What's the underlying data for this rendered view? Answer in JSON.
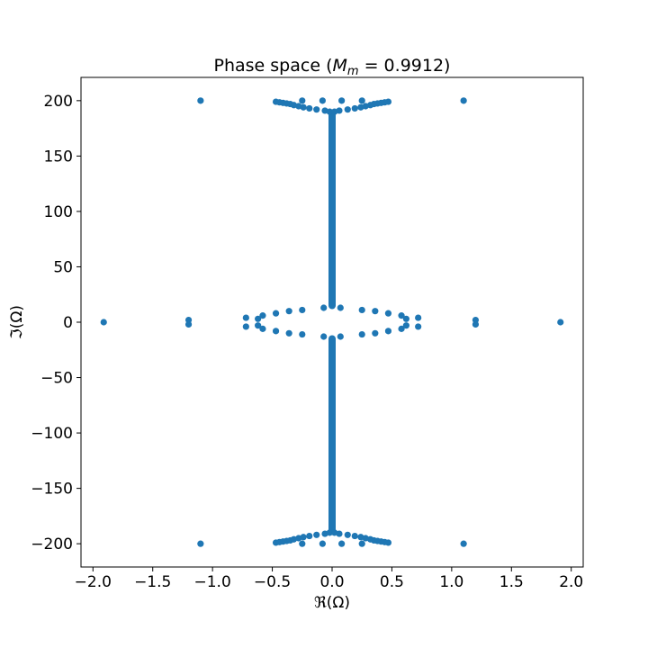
{
  "chart_data": {
    "type": "scatter",
    "title": "Phase space (M",
    "title_subscript": "m",
    "title_value": " = 0.9912)",
    "xlabel": "ℜ(Ω)",
    "ylabel": "ℑ(Ω)",
    "xlim": [
      -2.1,
      2.1
    ],
    "ylim": [
      -221,
      221
    ],
    "xticks": [
      -2.0,
      -1.5,
      -1.0,
      -0.5,
      0.0,
      0.5,
      1.0,
      1.5,
      2.0
    ],
    "xtick_labels": [
      "−2.0",
      "−1.5",
      "−1.0",
      "−0.5",
      "0.0",
      "0.5",
      "1.0",
      "1.5",
      "2.0"
    ],
    "yticks": [
      200,
      150,
      100,
      50,
      0,
      -50,
      -100,
      -150,
      -200
    ],
    "ytick_labels": [
      "200",
      "150",
      "100",
      "50",
      "0",
      "−50",
      "−100",
      "−150",
      "−200"
    ],
    "grid": false,
    "marker_color": "#1f77b4",
    "series": [
      {
        "points": [
          [
            -1.91,
            0
          ],
          [
            1.91,
            0
          ],
          [
            -1.2,
            2
          ],
          [
            -1.2,
            -2
          ],
          [
            1.2,
            2
          ],
          [
            1.2,
            -2
          ],
          [
            -1.1,
            200
          ],
          [
            1.1,
            200
          ],
          [
            -1.1,
            -200
          ],
          [
            1.1,
            -200
          ],
          [
            -0.72,
            4
          ],
          [
            -0.72,
            -4
          ],
          [
            0.72,
            4
          ],
          [
            0.72,
            -4
          ],
          [
            -0.62,
            3
          ],
          [
            -0.62,
            -3
          ],
          [
            0.62,
            3
          ],
          [
            0.62,
            -3
          ],
          [
            -0.58,
            6
          ],
          [
            -0.58,
            -6
          ],
          [
            0.58,
            6
          ],
          [
            0.58,
            -6
          ],
          [
            -0.47,
            8
          ],
          [
            -0.47,
            -8
          ],
          [
            0.47,
            8
          ],
          [
            0.47,
            -8
          ],
          [
            -0.36,
            10
          ],
          [
            -0.36,
            -10
          ],
          [
            0.36,
            10
          ],
          [
            0.36,
            -10
          ],
          [
            -0.25,
            11
          ],
          [
            -0.25,
            -11
          ],
          [
            0.25,
            11
          ],
          [
            0.25,
            -11
          ],
          [
            -0.07,
            13
          ],
          [
            -0.07,
            -13
          ],
          [
            0.07,
            13
          ],
          [
            0.07,
            -13
          ],
          [
            -0.47,
            199
          ],
          [
            -0.44,
            198.5
          ],
          [
            -0.41,
            198
          ],
          [
            -0.38,
            197.5
          ],
          [
            -0.35,
            197
          ],
          [
            -0.32,
            196
          ],
          [
            -0.28,
            195
          ],
          [
            -0.24,
            194
          ],
          [
            -0.19,
            193
          ],
          [
            -0.13,
            192
          ],
          [
            -0.06,
            191
          ],
          [
            -0.02,
            190
          ],
          [
            0.47,
            199
          ],
          [
            0.44,
            198.5
          ],
          [
            0.41,
            198
          ],
          [
            0.38,
            197.5
          ],
          [
            0.35,
            197
          ],
          [
            0.32,
            196
          ],
          [
            0.28,
            195
          ],
          [
            0.24,
            194
          ],
          [
            0.19,
            193
          ],
          [
            0.13,
            192
          ],
          [
            0.06,
            191
          ],
          [
            0.02,
            190
          ],
          [
            -0.47,
            -199
          ],
          [
            -0.44,
            -198.5
          ],
          [
            -0.41,
            -198
          ],
          [
            -0.38,
            -197.5
          ],
          [
            -0.35,
            -197
          ],
          [
            -0.32,
            -196
          ],
          [
            -0.28,
            -195
          ],
          [
            -0.24,
            -194
          ],
          [
            -0.19,
            -193
          ],
          [
            -0.13,
            -192
          ],
          [
            -0.06,
            -191
          ],
          [
            -0.02,
            -190
          ],
          [
            0.47,
            -199
          ],
          [
            0.44,
            -198.5
          ],
          [
            0.41,
            -198
          ],
          [
            0.38,
            -197.5
          ],
          [
            0.35,
            -197
          ],
          [
            0.32,
            -196
          ],
          [
            0.28,
            -195
          ],
          [
            0.24,
            -194
          ],
          [
            0.19,
            -193
          ],
          [
            0.13,
            -192
          ],
          [
            0.06,
            -191
          ],
          [
            0.02,
            -190
          ],
          [
            -0.25,
            200
          ],
          [
            -0.08,
            200
          ],
          [
            0.08,
            200
          ],
          [
            0.25,
            200
          ],
          [
            -0.25,
            -200
          ],
          [
            -0.08,
            -200
          ],
          [
            0.08,
            -200
          ],
          [
            0.25,
            -200
          ]
        ],
        "vertical_band": {
          "x": 0.0,
          "y_ranges": [
            [
              15,
              189
            ],
            [
              -189,
              -15
            ]
          ]
        }
      }
    ]
  }
}
